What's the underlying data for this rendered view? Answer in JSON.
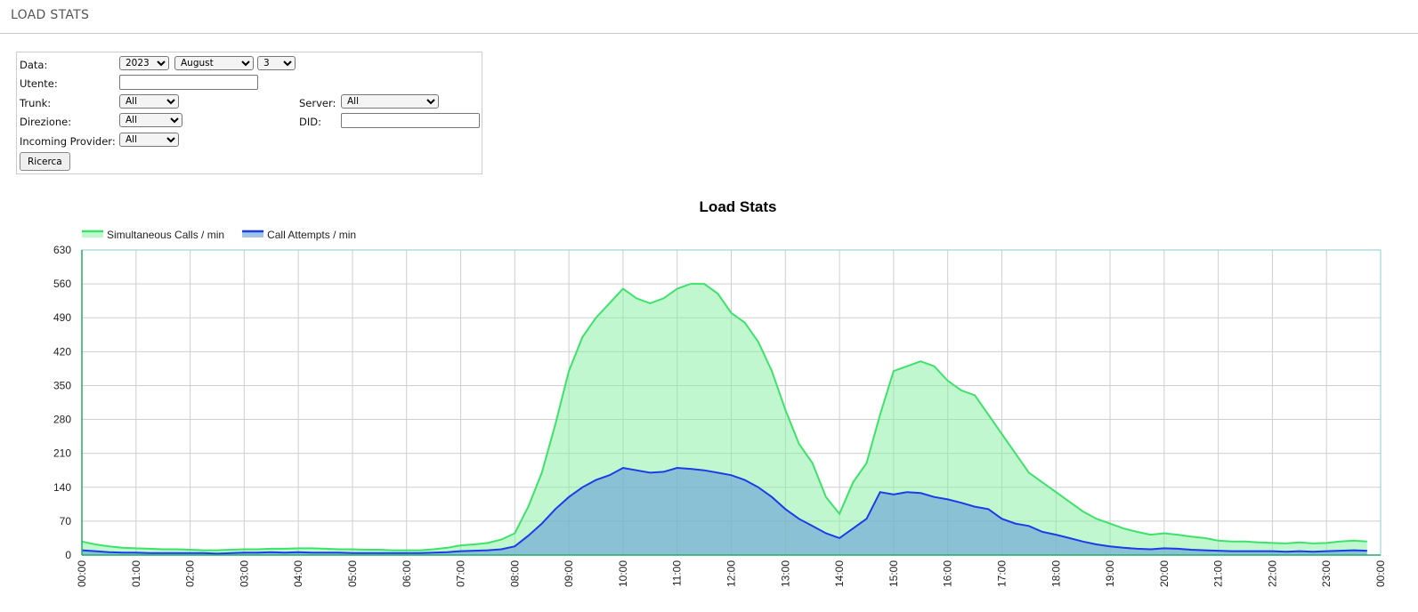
{
  "header": {
    "title": "LOAD STATS"
  },
  "form": {
    "data_label": "Data:",
    "year": "2023",
    "month": "August",
    "day": "3",
    "utente_label": "Utente:",
    "trunk_label": "Trunk:",
    "trunk": "All",
    "server_label": "Server:",
    "server": "All",
    "direzione_label": "Direzione:",
    "direzione": "All",
    "did_label": "DID:",
    "provider_label": "Incoming Provider:",
    "provider": "All",
    "button": "Ricerca"
  },
  "chart_data": {
    "type": "area",
    "title": "Load Stats",
    "x": [
      "00:00",
      "00:15",
      "00:30",
      "00:45",
      "01:00",
      "01:15",
      "01:30",
      "01:45",
      "02:00",
      "02:15",
      "02:30",
      "02:45",
      "03:00",
      "03:15",
      "03:30",
      "03:45",
      "04:00",
      "04:15",
      "04:30",
      "04:45",
      "05:00",
      "05:15",
      "05:30",
      "05:45",
      "06:00",
      "06:15",
      "06:30",
      "06:45",
      "07:00",
      "07:15",
      "07:30",
      "07:45",
      "08:00",
      "08:15",
      "08:30",
      "08:45",
      "09:00",
      "09:15",
      "09:30",
      "09:45",
      "10:00",
      "10:15",
      "10:30",
      "10:45",
      "11:00",
      "11:15",
      "11:30",
      "11:45",
      "12:00",
      "12:15",
      "12:30",
      "12:45",
      "13:00",
      "13:15",
      "13:30",
      "13:45",
      "14:00",
      "14:15",
      "14:30",
      "14:45",
      "15:00",
      "15:15",
      "15:30",
      "15:45",
      "16:00",
      "16:15",
      "16:30",
      "16:45",
      "17:00",
      "17:15",
      "17:30",
      "17:45",
      "18:00",
      "18:15",
      "18:30",
      "18:45",
      "19:00",
      "19:15",
      "19:30",
      "19:45",
      "20:00",
      "20:15",
      "20:30",
      "20:45",
      "21:00",
      "21:15",
      "21:30",
      "21:45",
      "22:00",
      "22:15",
      "22:30",
      "22:45",
      "23:00",
      "23:15",
      "23:30",
      "23:45"
    ],
    "series": [
      {
        "name": "Simultaneous Calls / min",
        "color": "#3de26a",
        "fill": "rgba(130,240,160,0.5)",
        "values": [
          28,
          22,
          18,
          15,
          14,
          13,
          12,
          12,
          11,
          10,
          10,
          11,
          12,
          12,
          13,
          13,
          14,
          14,
          13,
          12,
          12,
          11,
          11,
          10,
          10,
          10,
          12,
          15,
          20,
          22,
          25,
          32,
          45,
          100,
          170,
          270,
          380,
          450,
          490,
          520,
          550,
          530,
          520,
          530,
          550,
          560,
          560,
          540,
          500,
          480,
          440,
          380,
          300,
          230,
          190,
          120,
          85,
          150,
          190,
          290,
          380,
          390,
          400,
          390,
          360,
          340,
          330,
          290,
          250,
          210,
          170,
          150,
          130,
          110,
          90,
          75,
          65,
          55,
          48,
          42,
          45,
          42,
          38,
          35,
          30,
          28,
          28,
          26,
          25,
          24,
          26,
          24,
          25,
          28,
          30,
          28
        ]
      },
      {
        "name": "Call Attempts / min",
        "color": "#1a3de8",
        "fill": "rgba(110,165,215,0.65)",
        "values": [
          10,
          8,
          6,
          5,
          5,
          4,
          4,
          4,
          4,
          4,
          3,
          4,
          5,
          5,
          6,
          5,
          6,
          5,
          5,
          5,
          4,
          4,
          4,
          4,
          4,
          4,
          5,
          6,
          8,
          9,
          10,
          12,
          18,
          40,
          65,
          95,
          120,
          140,
          155,
          165,
          180,
          175,
          170,
          172,
          180,
          178,
          175,
          170,
          165,
          155,
          140,
          120,
          95,
          75,
          60,
          45,
          35,
          55,
          75,
          130,
          125,
          130,
          128,
          120,
          115,
          108,
          100,
          95,
          75,
          65,
          60,
          48,
          42,
          35,
          28,
          22,
          18,
          15,
          13,
          12,
          14,
          13,
          11,
          10,
          9,
          8,
          8,
          8,
          8,
          7,
          8,
          7,
          8,
          9,
          10,
          9
        ]
      }
    ],
    "ylim": [
      0,
      630
    ],
    "yticks": [
      0,
      70,
      140,
      210,
      280,
      350,
      420,
      490,
      560,
      630
    ],
    "xticks": [
      "00:00",
      "01:00",
      "02:00",
      "03:00",
      "04:00",
      "05:00",
      "06:00",
      "07:00",
      "08:00",
      "09:00",
      "10:00",
      "11:00",
      "12:00",
      "13:00",
      "14:00",
      "15:00",
      "16:00",
      "17:00",
      "18:00",
      "19:00",
      "20:00",
      "21:00",
      "22:00",
      "23:00",
      "00:00"
    ],
    "grid": true,
    "legend": "top-left"
  }
}
